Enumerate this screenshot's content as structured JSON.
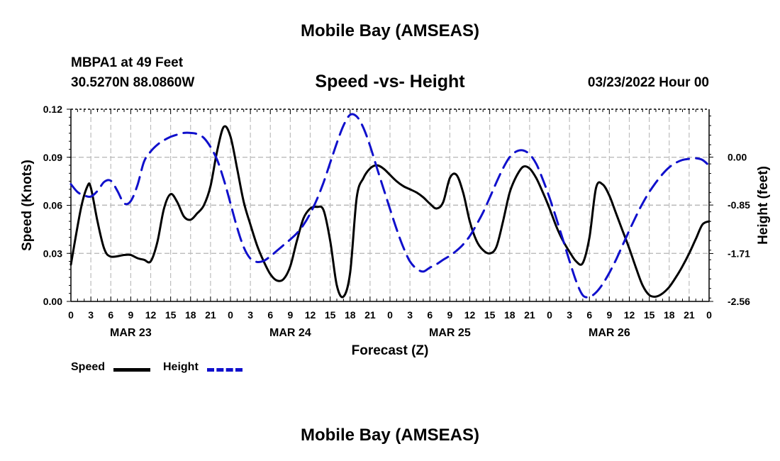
{
  "header": {
    "title_top": "Mobile Bay (AMSEAS)",
    "station": "MBPA1 at 49 Feet",
    "coords": "30.5270N  88.0860W",
    "subtitle": "Speed -vs- Height",
    "datetime": "03/23/2022 Hour 00",
    "title_bottom": "Mobile Bay (AMSEAS)"
  },
  "legend": {
    "speed_label": "Speed",
    "height_label": "Height"
  },
  "colors": {
    "speed": "#000000",
    "height": "#1010cc",
    "grid": "#bdbdbd"
  },
  "chart_data": {
    "type": "line",
    "title": "Speed -vs- Height",
    "xlabel": "Forecast (Z)",
    "ylabel": "Speed (Knots)",
    "y2label": "Height (feet)",
    "x_range": [
      0,
      96
    ],
    "x_tick_labels": [
      "0",
      "3",
      "6",
      "9",
      "12",
      "15",
      "18",
      "21",
      "0",
      "3",
      "6",
      "9",
      "12",
      "15",
      "18",
      "21",
      "0",
      "3",
      "6",
      "9",
      "12",
      "15",
      "18",
      "21",
      "0",
      "3",
      "6",
      "9",
      "12",
      "15",
      "18",
      "21",
      "0"
    ],
    "date_labels": [
      {
        "label": "MAR 23",
        "x": 9
      },
      {
        "label": "MAR 24",
        "x": 33
      },
      {
        "label": "MAR 25",
        "x": 57
      },
      {
        "label": "MAR 26",
        "x": 81
      }
    ],
    "ylim": [
      0,
      0.12
    ],
    "y_ticks": [
      "0.00",
      "0.03",
      "0.06",
      "0.09",
      "0.12"
    ],
    "y2lim": [
      -2.56,
      0.85
    ],
    "y2_ticks": [
      "-2.56",
      "-1.71",
      "-0.85",
      "0.00"
    ],
    "series": [
      {
        "name": "Speed",
        "axis": "left",
        "style": "solid",
        "x": [
          0,
          1.5,
          2.5,
          3,
          4,
          5,
          6,
          8,
          9,
          10,
          11,
          12,
          13,
          14,
          15,
          16,
          17,
          18,
          19,
          20,
          21,
          22,
          23,
          24,
          25,
          26,
          27,
          28,
          29,
          30,
          31,
          32,
          33,
          34,
          35,
          36,
          37,
          38,
          39,
          40,
          41,
          42,
          43,
          44,
          45,
          46,
          47,
          48,
          49,
          50,
          51,
          52,
          53,
          54,
          55,
          56,
          57,
          58,
          59,
          60,
          61,
          62,
          63,
          64,
          65,
          66,
          67,
          68,
          69,
          70,
          71,
          72,
          73,
          74,
          75,
          76,
          77,
          78,
          79,
          80,
          81,
          82,
          83,
          84,
          85,
          86,
          87,
          88,
          89,
          90,
          91,
          92,
          93,
          94,
          95,
          96
        ],
        "y": [
          0.023,
          0.058,
          0.072,
          0.071,
          0.05,
          0.033,
          0.028,
          0.029,
          0.029,
          0.027,
          0.026,
          0.025,
          0.037,
          0.058,
          0.067,
          0.062,
          0.053,
          0.051,
          0.055,
          0.06,
          0.072,
          0.094,
          0.109,
          0.103,
          0.083,
          0.062,
          0.048,
          0.035,
          0.025,
          0.017,
          0.013,
          0.014,
          0.022,
          0.038,
          0.052,
          0.058,
          0.059,
          0.057,
          0.038,
          0.01,
          0.003,
          0.018,
          0.065,
          0.077,
          0.083,
          0.085,
          0.083,
          0.079,
          0.075,
          0.072,
          0.07,
          0.068,
          0.065,
          0.061,
          0.058,
          0.062,
          0.077,
          0.079,
          0.068,
          0.05,
          0.038,
          0.032,
          0.03,
          0.034,
          0.05,
          0.068,
          0.078,
          0.084,
          0.083,
          0.077,
          0.068,
          0.058,
          0.047,
          0.038,
          0.031,
          0.025,
          0.024,
          0.04,
          0.071,
          0.073,
          0.066,
          0.055,
          0.044,
          0.033,
          0.021,
          0.01,
          0.004,
          0.003,
          0.005,
          0.009,
          0.015,
          0.022,
          0.03,
          0.039,
          0.048,
          0.05
        ]
      },
      {
        "name": "Height",
        "axis": "right",
        "style": "dashed",
        "x": [
          0,
          1,
          2,
          3,
          4,
          5,
          6,
          7,
          8,
          9,
          10,
          11,
          12,
          13,
          14,
          15,
          16,
          17,
          18,
          19,
          20,
          21,
          22,
          23,
          24,
          25,
          26,
          27,
          28,
          29,
          30,
          31,
          32,
          33,
          34,
          35,
          36,
          37,
          38,
          39,
          40,
          41,
          42,
          43,
          44,
          45,
          46,
          47,
          48,
          49,
          50,
          51,
          52,
          53,
          54,
          55,
          56,
          57,
          58,
          59,
          60,
          61,
          62,
          63,
          64,
          65,
          66,
          67,
          68,
          69,
          70,
          71,
          72,
          73,
          74,
          75,
          76,
          77,
          78,
          79,
          80,
          81,
          82,
          83,
          84,
          85,
          86,
          87,
          88,
          89,
          90,
          91,
          92,
          93,
          94,
          95,
          96
        ],
        "y": [
          -0.48,
          -0.62,
          -0.68,
          -0.7,
          -0.6,
          -0.44,
          -0.42,
          -0.6,
          -0.82,
          -0.78,
          -0.5,
          -0.08,
          0.1,
          0.22,
          0.3,
          0.36,
          0.4,
          0.43,
          0.43,
          0.41,
          0.34,
          0.18,
          -0.05,
          -0.4,
          -0.82,
          -1.25,
          -1.6,
          -1.8,
          -1.86,
          -1.84,
          -1.76,
          -1.66,
          -1.56,
          -1.46,
          -1.35,
          -1.2,
          -1.0,
          -0.75,
          -0.45,
          -0.1,
          0.25,
          0.56,
          0.75,
          0.72,
          0.52,
          0.2,
          -0.18,
          -0.55,
          -0.92,
          -1.28,
          -1.6,
          -1.85,
          -1.98,
          -2.03,
          -1.96,
          -1.9,
          -1.82,
          -1.75,
          -1.66,
          -1.55,
          -1.4,
          -1.2,
          -0.98,
          -0.72,
          -0.45,
          -0.2,
          0.0,
          0.1,
          0.12,
          0.05,
          -0.12,
          -0.4,
          -0.72,
          -1.08,
          -1.46,
          -1.84,
          -2.2,
          -2.45,
          -2.48,
          -2.4,
          -2.25,
          -2.05,
          -1.82,
          -1.56,
          -1.3,
          -1.05,
          -0.82,
          -0.62,
          -0.45,
          -0.3,
          -0.18,
          -0.1,
          -0.05,
          -0.03,
          -0.02,
          -0.05,
          -0.15
        ]
      }
    ]
  }
}
